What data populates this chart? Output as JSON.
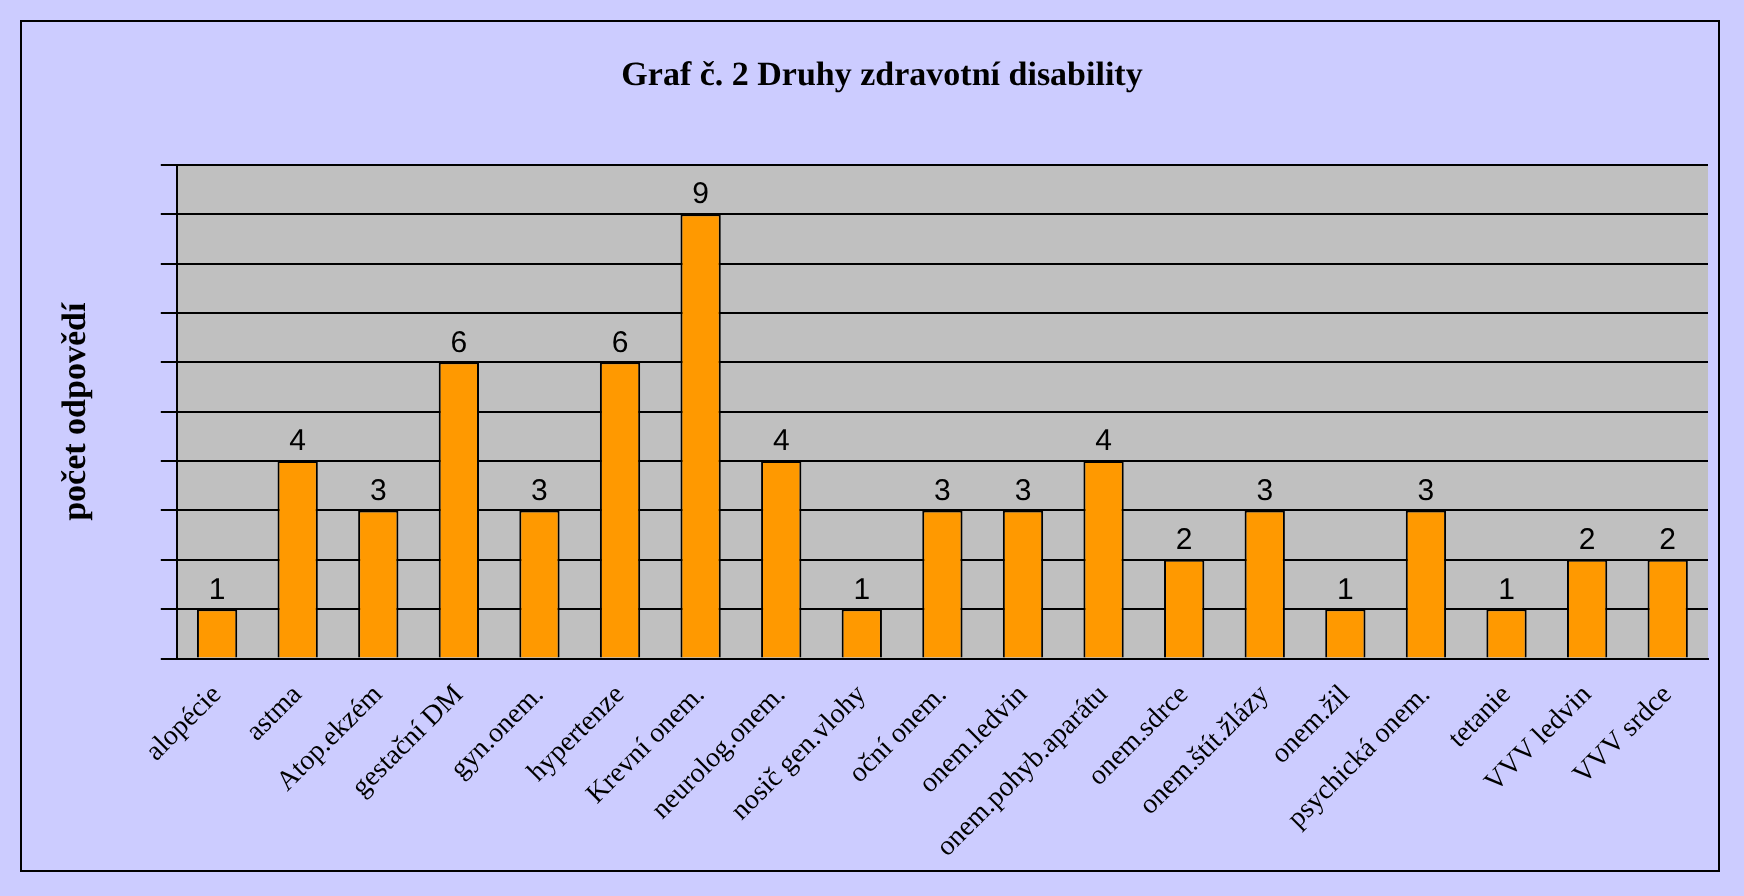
{
  "chart_data": {
    "type": "bar",
    "title": "Graf č. 2 Druhy zdravotní disability",
    "ylabel": "počet odpovědí",
    "categories": [
      "alopécie",
      "astma",
      "Atop.ekzém",
      "gestační DM",
      "gyn.onem.",
      "hypertenze",
      "Krevní onem.",
      "neurolog.onem.",
      "nosič gen.vlohy",
      "oční onem.",
      "onem.ledvin",
      "onem.pohyb.aparátu",
      "onem.sdrce",
      "onem.štít.žlázy",
      "onem.žil",
      "psychická onem.",
      "tetanie",
      "VVV ledvin",
      "VVV srdce"
    ],
    "values": [
      1,
      4,
      3,
      6,
      3,
      6,
      9,
      4,
      1,
      3,
      3,
      4,
      2,
      3,
      1,
      3,
      1,
      2,
      2
    ],
    "color": "#ff9900",
    "ylim": [
      0,
      10
    ],
    "yticks": [
      {
        "value": 0,
        "label": null
      },
      {
        "value": 1,
        "label": null
      },
      {
        "value": 2,
        "label": null
      },
      {
        "value": 3,
        "label": null
      },
      {
        "value": 4,
        "label": null
      },
      {
        "value": 5,
        "label": null
      },
      {
        "value": 6,
        "label": null
      },
      {
        "value": 7,
        "label": null
      },
      {
        "value": 8,
        "label": null
      },
      {
        "value": 9,
        "label": null
      },
      {
        "value": 10,
        "label": null
      }
    ],
    "grid": "y",
    "data_labels": true,
    "legend": false
  }
}
